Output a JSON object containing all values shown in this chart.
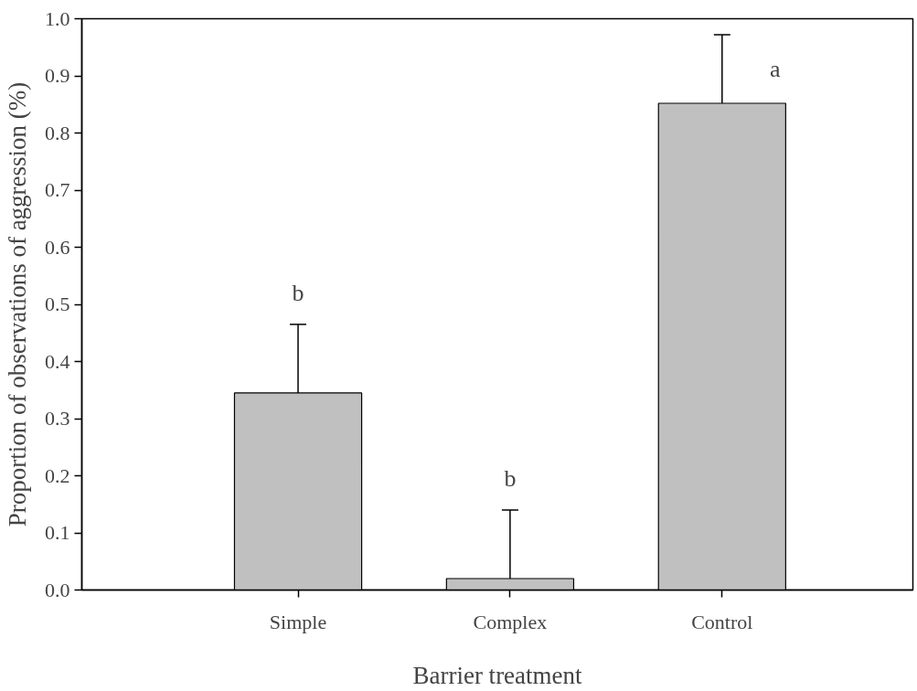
{
  "chart_data": {
    "type": "bar",
    "xlabel": "Barrier treatment",
    "ylabel": "Proportion of observations of aggression (%)",
    "categories": [
      "Simple",
      "Complex",
      "Control"
    ],
    "values": [
      0.345,
      0.02,
      0.852
    ],
    "errors": [
      0.12,
      0.12,
      0.12
    ],
    "color": "#c0c0c0",
    "ylim": [
      0,
      1.0
    ],
    "yticks": [
      {
        "value": 0,
        "label": "0.0"
      },
      0.1,
      0.2,
      0.3,
      0.4,
      0.5,
      0.6,
      0.7,
      0.8,
      0.9,
      {
        "value": 1,
        "label": "1.0"
      }
    ],
    "grid": false,
    "annotations": [
      "b",
      "b",
      "a"
    ]
  }
}
